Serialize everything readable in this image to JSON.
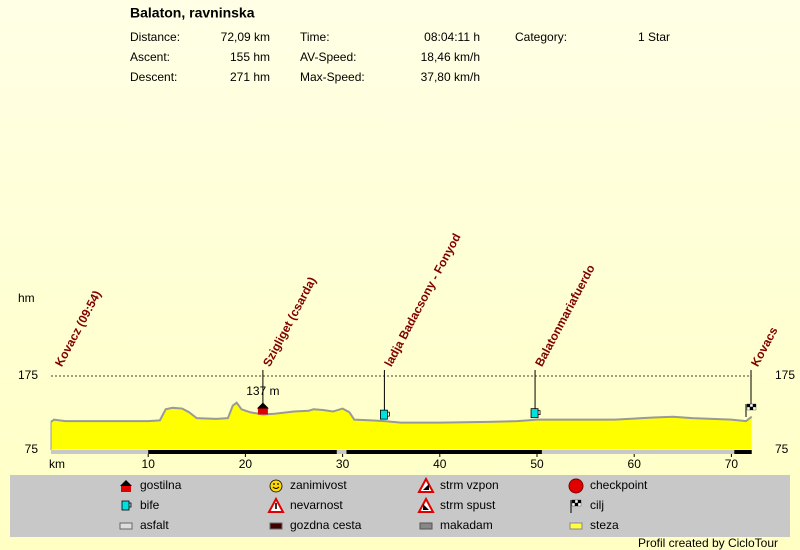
{
  "header": {
    "title": "Balaton, ravninska",
    "stats": [
      [
        "Distance:",
        "72,09 km",
        "Time:",
        "08:04:11 h",
        "Category:",
        "1 Star"
      ],
      [
        "Ascent:",
        "155 hm",
        "AV-Speed:",
        "18,46 km/h"
      ],
      [
        "Descent:",
        "271 hm",
        "Max-Speed:",
        "37,80 km/h"
      ]
    ]
  },
  "chart_data": {
    "type": "area",
    "y_label": "hm",
    "x_label": "km",
    "color": "#ffff00",
    "line_color": "#999999",
    "x": [
      0,
      0.3,
      1.5,
      5,
      10,
      11.2,
      11.8,
      12.5,
      13.5,
      14.2,
      15,
      17,
      18.2,
      18.7,
      19.1,
      19.6,
      20.5,
      21.8,
      23,
      25,
      26.5,
      27,
      28,
      29,
      30,
      30.7,
      31.2,
      33,
      34.3,
      36,
      40,
      45,
      48,
      50,
      53,
      58,
      62,
      64,
      66,
      70,
      71.5,
      72.09
    ],
    "values": [
      113,
      116,
      114,
      114,
      114,
      115,
      130,
      132,
      131,
      126,
      118,
      117,
      118,
      135,
      139,
      130,
      126,
      123,
      124,
      127,
      128,
      130,
      129,
      127,
      131,
      126,
      116,
      115,
      114,
      112,
      112,
      113,
      114,
      116,
      116,
      116,
      119,
      120,
      118,
      116,
      114,
      120
    ],
    "xlim": [
      0,
      72.09
    ],
    "ylim": [
      75,
      175
    ],
    "xticks": [
      10,
      20,
      30,
      40,
      50,
      60,
      70
    ],
    "yticks": [
      75,
      175
    ],
    "surface_segments": [
      [
        10,
        29.4
      ],
      [
        30.4,
        50.5
      ],
      [
        70.3,
        72.09
      ]
    ],
    "annotations": [
      {
        "text": "137 m",
        "x": 21.8
      }
    ],
    "pois": [
      {
        "label": "Kovacz (09:54)",
        "x": 0
      },
      {
        "label": "Szigliget (csarda)",
        "x": 21.8,
        "icon": "gostilna"
      },
      {
        "label": "ladja Badacsony - Fonyod",
        "x": 34.3,
        "icon": "bife"
      },
      {
        "label": "Balatonmariafuerdo",
        "x": 49.8,
        "icon": "bife"
      },
      {
        "label": "Kovacs",
        "x": 72.09,
        "icon": "cilj"
      }
    ]
  },
  "legend": [
    [
      "gostilna",
      "zanimivost",
      "strm vzpon",
      "checkpoint"
    ],
    [
      "bife",
      "nevarnost",
      "strm spust",
      "cilj"
    ],
    [
      "asfalt",
      "gozdna cesta",
      "makadam",
      "steza"
    ]
  ],
  "footer": "Profil created by CicloTour"
}
